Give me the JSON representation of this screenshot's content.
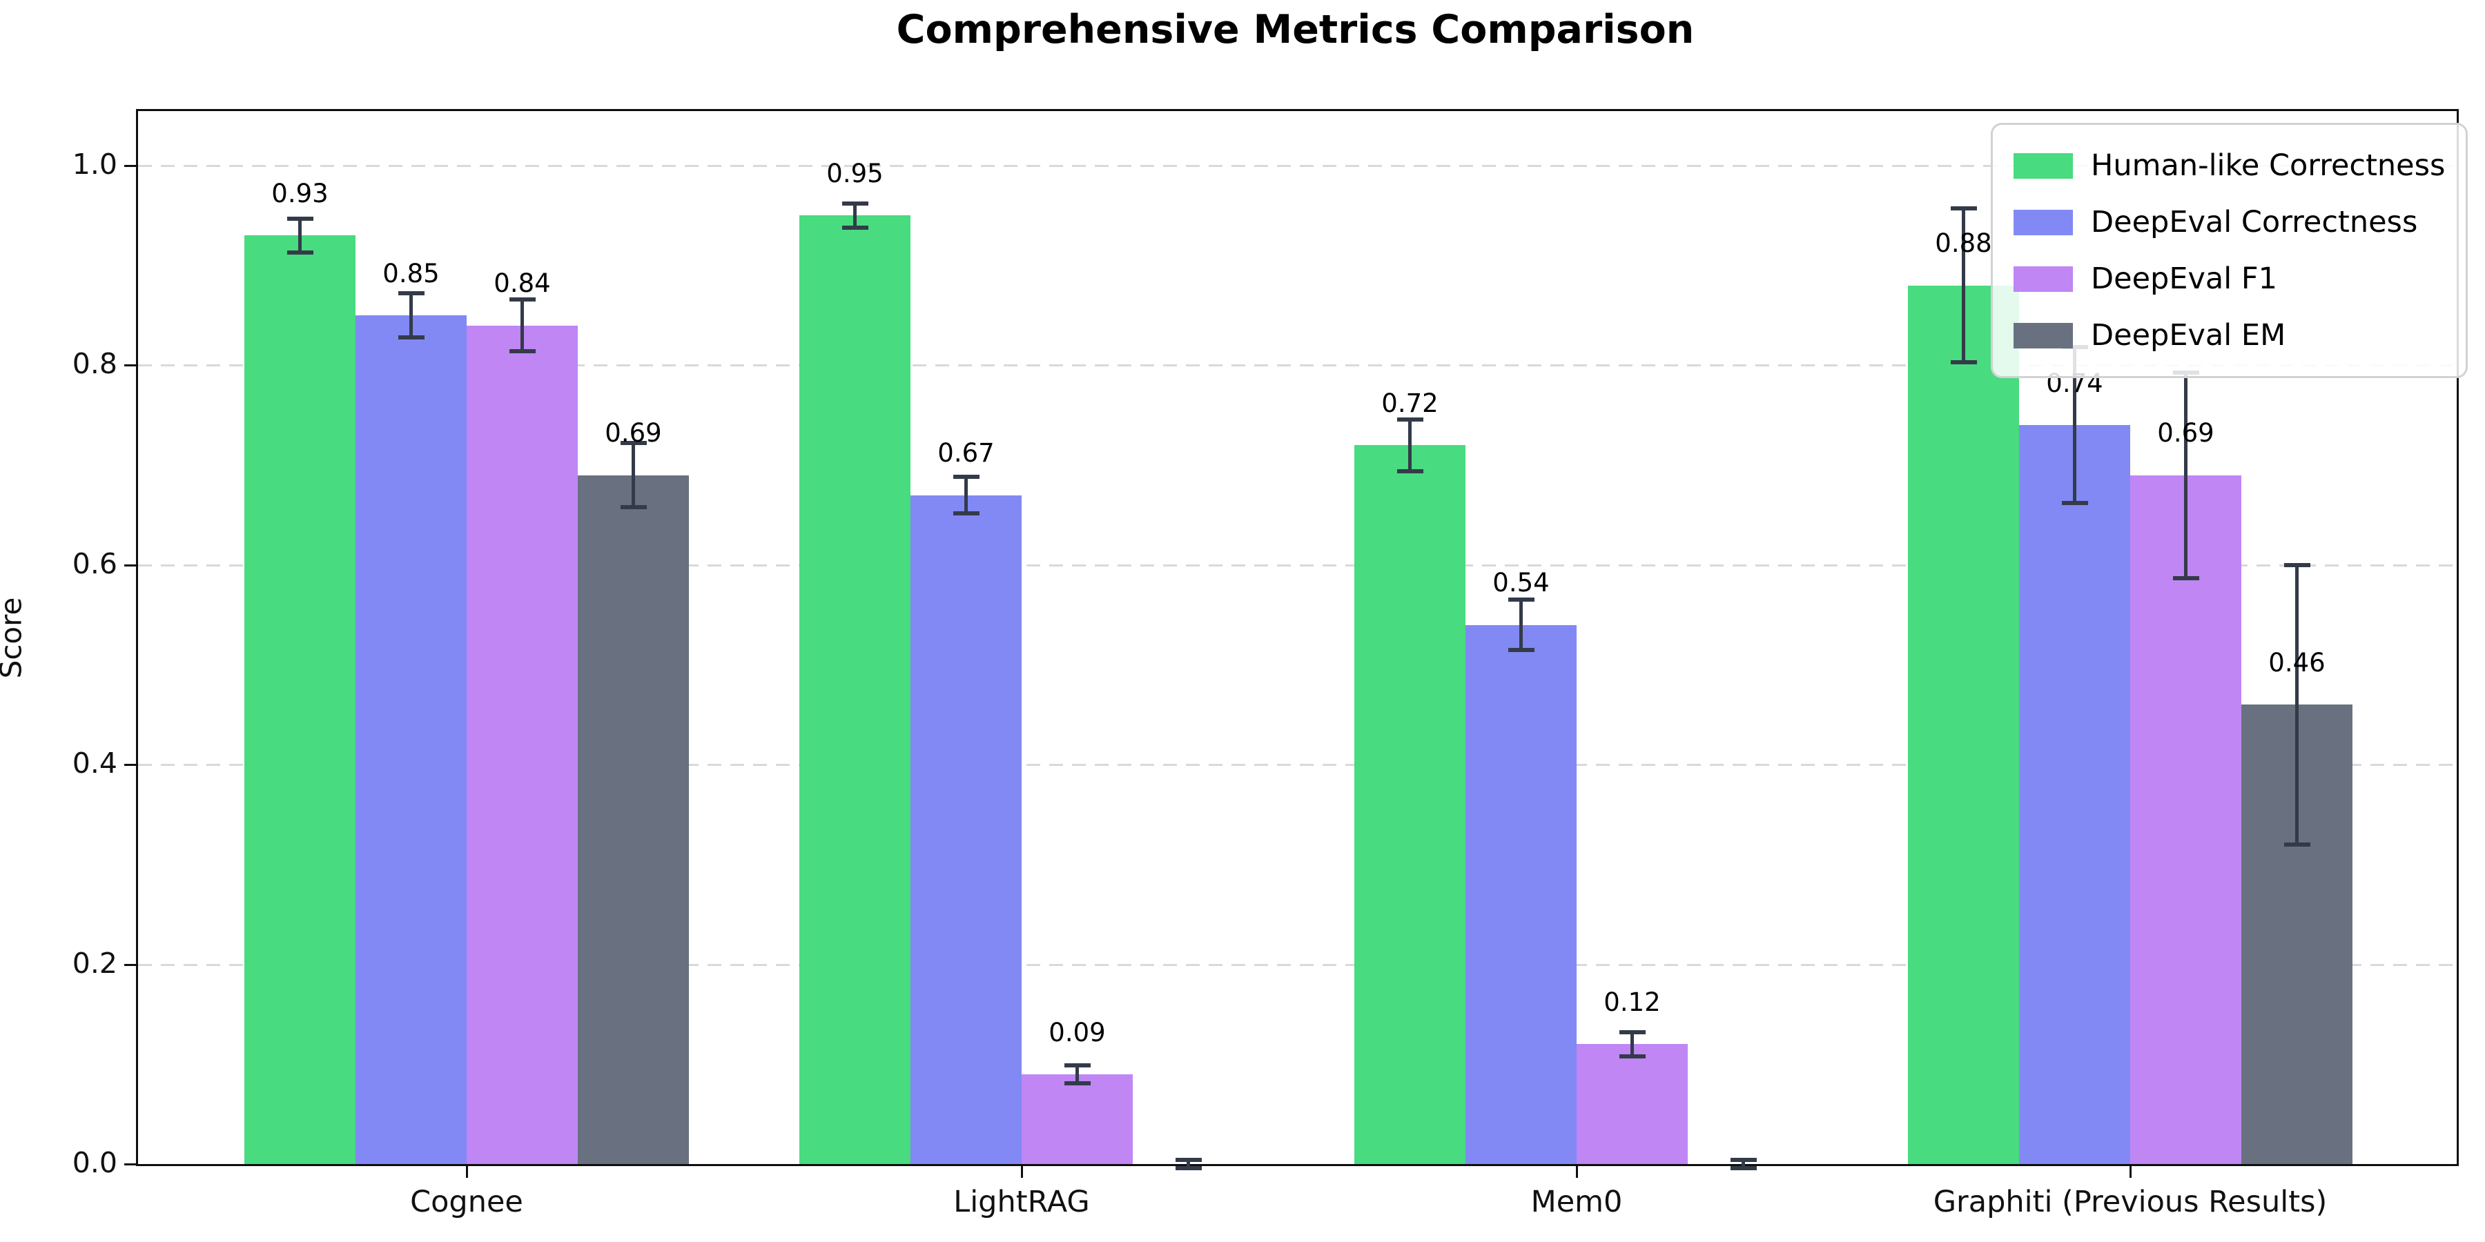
{
  "chart_data": {
    "type": "bar",
    "title": "Comprehensive Metrics Comparison",
    "xlabel": "",
    "ylabel": "Score",
    "categories": [
      "Cognee",
      "LightRAG",
      "Mem0",
      "Graphiti (Previous Results)"
    ],
    "series": [
      {
        "name": "Human-like Correctness",
        "color": "#48db80",
        "values": [
          0.93,
          0.95,
          0.72,
          0.88
        ],
        "errors": [
          0.017,
          0.012,
          0.026,
          0.077
        ],
        "labels": [
          "0.93",
          "0.95",
          "0.72",
          "0.88"
        ]
      },
      {
        "name": "DeepEval Correctness",
        "color": "#8289f4",
        "values": [
          0.85,
          0.67,
          0.54,
          0.74
        ],
        "errors": [
          0.022,
          0.018,
          0.025,
          0.078
        ],
        "labels": [
          "0.85",
          "0.67",
          "0.54",
          "0.74"
        ]
      },
      {
        "name": "DeepEval F1",
        "color": "#bf86f4",
        "values": [
          0.84,
          0.09,
          0.12,
          0.69
        ],
        "errors": [
          0.026,
          0.009,
          0.012,
          0.103
        ],
        "labels": [
          "0.84",
          "0.09",
          "0.12",
          "0.69"
        ]
      },
      {
        "name": "DeepEval EM",
        "color": "#697180",
        "values": [
          0.69,
          0.0,
          0.0,
          0.46
        ],
        "errors": [
          0.032,
          0.004,
          0.004,
          0.14
        ],
        "labels": [
          "0.69",
          "",
          "",
          "0.46"
        ]
      }
    ],
    "ylim": [
      0.0,
      1.0546
    ],
    "yticks": [
      {
        "v": 0.0,
        "label": "0.0"
      },
      {
        "v": 0.2,
        "label": "0.2"
      },
      {
        "v": 0.4,
        "label": "0.4"
      },
      {
        "v": 0.6,
        "label": "0.6"
      },
      {
        "v": 0.8,
        "label": "0.8"
      },
      {
        "v": 1.0,
        "label": "1.0"
      }
    ],
    "grid": "horizontal-dashed",
    "legend_position": "upper-right",
    "error_bar_color": "#333b49"
  }
}
